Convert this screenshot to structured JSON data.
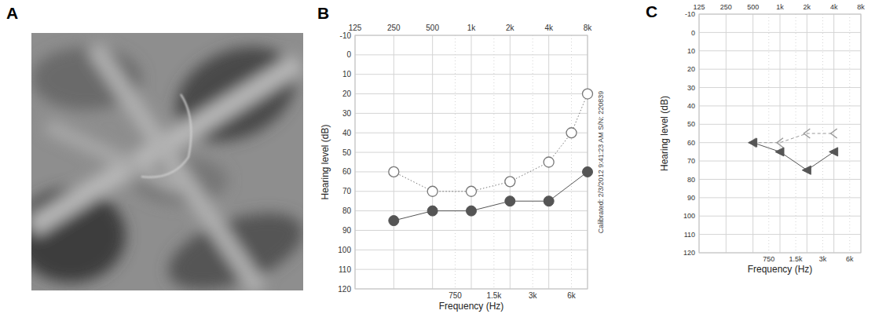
{
  "image_panel": {
    "letter": "A"
  },
  "chart_data": [
    {
      "type": "line",
      "letter": "B",
      "xlabel": "Frequency (Hz)",
      "ylabel": "Hearing level (dB)",
      "annotations": [
        "Calibrated: 2/3/2012 9:41:23 AM S/N: 220839"
      ],
      "log": "x",
      "grid": true,
      "xlim": [
        125,
        8000
      ],
      "x2ticks": [
        125,
        250,
        500,
        {
          "value": 1000,
          "label": "1k"
        },
        {
          "value": 2000,
          "label": "2k"
        },
        {
          "value": 4000,
          "label": "4k"
        },
        {
          "value": 8000,
          "label": "8k"
        }
      ],
      "xticks": [
        750,
        {
          "value": 1500,
          "label": "1.5k"
        },
        {
          "value": 3000,
          "label": "3k"
        },
        {
          "value": 6000,
          "label": "6k"
        }
      ],
      "ylim": [
        120,
        -10
      ],
      "yticks": [
        -10,
        0,
        10,
        20,
        30,
        40,
        50,
        60,
        70,
        80,
        90,
        100,
        110,
        120
      ],
      "series": [
        {
          "color": "#777777",
          "marker": "circle-open",
          "line_style": "dotted",
          "x": [
            250,
            500,
            1000,
            2000,
            4000,
            6000,
            8000
          ],
          "values": [
            60,
            70,
            70,
            65,
            55,
            40,
            20
          ]
        },
        {
          "color": "#555555",
          "marker": "circle-filled",
          "line_style": "solid",
          "x": [
            250,
            500,
            1000,
            2000,
            4000,
            8000
          ],
          "values": [
            85,
            80,
            80,
            75,
            75,
            60
          ]
        }
      ]
    },
    {
      "type": "line",
      "letter": "C",
      "xlabel": "Frequency (Hz)",
      "ylabel": "Hearing level (dB)",
      "log": "x",
      "grid": true,
      "xlim": [
        125,
        8000
      ],
      "x2ticks": [
        125,
        250,
        500,
        {
          "value": 1000,
          "label": "1k"
        },
        {
          "value": 2000,
          "label": "2k"
        },
        {
          "value": 4000,
          "label": "4k"
        },
        {
          "value": 8000,
          "label": "8k"
        }
      ],
      "xticks": [
        750,
        {
          "value": 1500,
          "label": "1.5k"
        },
        {
          "value": 3000,
          "label": "3k"
        },
        {
          "value": 6000,
          "label": "6k"
        }
      ],
      "ylim": [
        120,
        -10
      ],
      "yticks": [
        -10,
        0,
        10,
        20,
        30,
        40,
        50,
        60,
        70,
        80,
        90,
        100,
        110,
        120
      ],
      "series": [
        {
          "color": "#999999",
          "marker": "chevron",
          "line_style": "dashed",
          "x": [
            500,
            1000,
            2000,
            4000
          ],
          "values": [
            60,
            60,
            55,
            55
          ]
        },
        {
          "color": "#555555",
          "marker": "triangle-filled",
          "line_style": "solid",
          "x": [
            500,
            1000,
            2000,
            4000
          ],
          "values": [
            60,
            65,
            75,
            65
          ]
        }
      ]
    }
  ]
}
